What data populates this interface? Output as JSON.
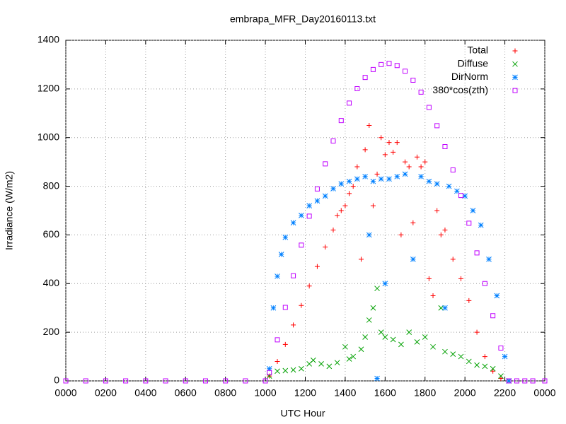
{
  "chart_data": {
    "type": "scatter",
    "title": "embrapa_MFR_Day20160113.txt",
    "x_label": "UTC Hour",
    "y_label": "Irradiance (W/m2)",
    "xlim": [
      0,
      24
    ],
    "ylim": [
      0,
      1400
    ],
    "xticks": [
      {
        "value": 0,
        "label": "0000"
      },
      {
        "value": 2,
        "label": "0200"
      },
      {
        "value": 4,
        "label": "0400"
      },
      {
        "value": 6,
        "label": "0600"
      },
      {
        "value": 8,
        "label": "0800"
      },
      {
        "value": 10,
        "label": "1000"
      },
      {
        "value": 12,
        "label": "1200"
      },
      {
        "value": 14,
        "label": "1400"
      },
      {
        "value": 16,
        "label": "1600"
      },
      {
        "value": 18,
        "label": "1800"
      },
      {
        "value": 20,
        "label": "2000"
      },
      {
        "value": 22,
        "label": "2200"
      },
      {
        "value": 24,
        "label": "0000"
      }
    ],
    "yticks": [
      0,
      200,
      400,
      600,
      800,
      1000,
      1200,
      1400
    ],
    "grid": true,
    "legend": "top-right",
    "series": [
      {
        "name": "Total",
        "color": "#ff0000",
        "marker": "plus",
        "x": [
          10.2,
          10.6,
          11.0,
          11.4,
          11.8,
          12.2,
          12.6,
          13.0,
          13.4,
          13.6,
          13.8,
          14.0,
          14.2,
          14.4,
          14.6,
          14.8,
          15.0,
          15.2,
          15.4,
          15.6,
          15.8,
          16.0,
          16.2,
          16.4,
          16.6,
          16.8,
          17.0,
          17.2,
          17.4,
          17.6,
          17.8,
          18.0,
          18.2,
          18.4,
          18.6,
          18.8,
          19.0,
          19.4,
          19.8,
          20.2,
          20.6,
          21.0,
          21.4,
          21.8,
          22.2
        ],
        "values": [
          20,
          80,
          150,
          230,
          310,
          390,
          470,
          550,
          620,
          680,
          700,
          720,
          770,
          800,
          880,
          500,
          950,
          1050,
          720,
          850,
          1000,
          930,
          980,
          940,
          980,
          600,
          900,
          880,
          650,
          920,
          880,
          900,
          420,
          350,
          700,
          600,
          620,
          500,
          420,
          330,
          200,
          100,
          40,
          10,
          0
        ]
      },
      {
        "name": "Diffuse",
        "color": "#00a000",
        "marker": "cross",
        "x": [
          10.2,
          10.6,
          11.0,
          11.4,
          11.8,
          12.2,
          12.4,
          12.8,
          13.2,
          13.6,
          14.0,
          14.2,
          14.4,
          14.8,
          15.0,
          15.2,
          15.4,
          15.6,
          15.8,
          16.0,
          16.4,
          16.8,
          17.2,
          17.6,
          18.0,
          18.4,
          18.8,
          19.0,
          19.4,
          19.8,
          20.2,
          20.6,
          21.0,
          21.4,
          21.8,
          22.2
        ],
        "values": [
          20,
          40,
          42,
          45,
          50,
          70,
          85,
          70,
          60,
          75,
          140,
          90,
          100,
          130,
          180,
          250,
          300,
          380,
          200,
          180,
          170,
          150,
          200,
          160,
          180,
          140,
          300,
          120,
          110,
          100,
          80,
          65,
          60,
          50,
          20,
          0
        ]
      },
      {
        "name": "DirNorm",
        "color": "#0080ff",
        "marker": "star",
        "x": [
          10.2,
          10.4,
          10.6,
          10.8,
          11.0,
          11.4,
          11.8,
          12.2,
          12.6,
          13.0,
          13.4,
          13.8,
          14.2,
          14.6,
          15.0,
          15.2,
          15.4,
          15.6,
          15.8,
          16.0,
          16.2,
          16.6,
          17.0,
          17.4,
          17.8,
          18.2,
          18.6,
          19.0,
          19.2,
          19.6,
          20.0,
          20.4,
          20.8,
          21.2,
          21.6,
          22.0,
          22.2
        ],
        "values": [
          50,
          300,
          430,
          520,
          590,
          650,
          680,
          720,
          740,
          760,
          790,
          810,
          820,
          830,
          840,
          600,
          820,
          10,
          830,
          400,
          830,
          840,
          850,
          500,
          840,
          820,
          810,
          300,
          800,
          780,
          760,
          700,
          640,
          500,
          350,
          100,
          0
        ]
      },
      {
        "name": "380*cos(zth)",
        "color": "#c000ff",
        "marker": "square",
        "x": [
          0,
          1,
          2,
          3,
          4,
          5,
          6,
          7,
          8,
          9,
          10,
          10.2,
          10.6,
          11.0,
          11.4,
          11.8,
          12.2,
          12.6,
          13.0,
          13.4,
          13.8,
          14.2,
          14.6,
          15.0,
          15.4,
          15.8,
          16.2,
          16.6,
          17.0,
          17.4,
          17.8,
          18.2,
          18.6,
          19.0,
          19.4,
          19.8,
          20.2,
          20.6,
          21.0,
          21.4,
          21.8,
          22.2,
          22.6,
          23,
          23.4,
          24
        ],
        "values": [
          0,
          0,
          0,
          0,
          0,
          0,
          0,
          0,
          0,
          0,
          0,
          34,
          169,
          302,
          432,
          558,
          677,
          789,
          892,
          986,
          1070,
          1142,
          1201,
          1247,
          1280,
          1300,
          1305,
          1296,
          1273,
          1236,
          1187,
          1124,
          1049,
          963,
          867,
          762,
          648,
          526,
          400,
          268,
          135,
          0,
          0,
          0,
          0,
          0
        ]
      }
    ]
  }
}
